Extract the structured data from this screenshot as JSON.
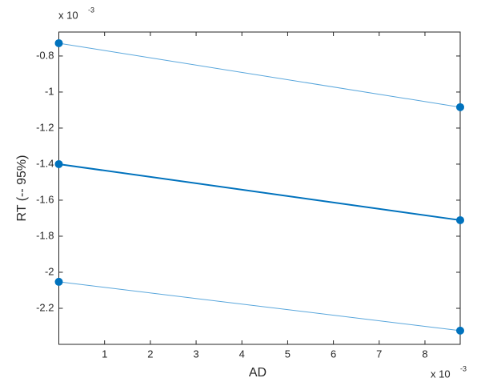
{
  "chart_data": {
    "type": "line",
    "x_label": "AD",
    "y_label": "RT (-- 95%)",
    "x_multiplier": "x 10",
    "x_exponent": "-3",
    "y_multiplier": "x 10",
    "y_exponent": "-3",
    "x": [
      0,
      8.77
    ],
    "series": [
      {
        "color": "#5aa7dc",
        "width": 1,
        "values": [
          -0.729,
          -1.084
        ]
      },
      {
        "color": "#0072bd",
        "width": 2,
        "values": [
          -1.4,
          -1.711
        ]
      },
      {
        "color": "#5aa7dc",
        "width": 1,
        "values": [
          -2.053,
          -2.324
        ]
      }
    ],
    "marker_color": "#0072bd",
    "xlim": [
      0,
      8.77
    ],
    "xticks": [
      1,
      2,
      3,
      4,
      5,
      6,
      7,
      8
    ],
    "ylim": [
      -2.4,
      -0.667
    ],
    "yticks": [
      -2.2,
      -2,
      -1.8,
      -1.6,
      -1.4,
      -1.2,
      -1,
      -0.8
    ],
    "grid": false
  }
}
